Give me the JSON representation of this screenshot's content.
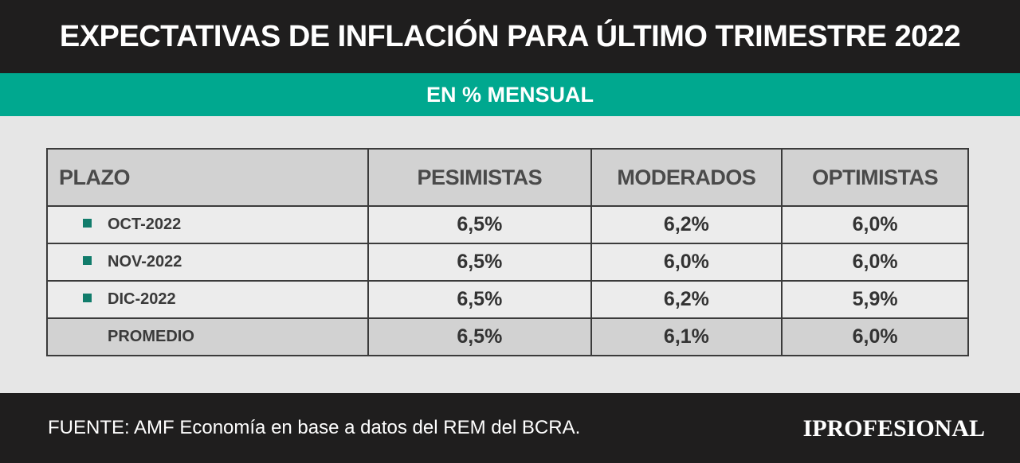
{
  "title": "EXPECTATIVAS DE INFLACIÓN PARA ÚLTIMO TRIMESTRE 2022",
  "subtitle": "EN % MENSUAL",
  "colors": {
    "header_bg": "#1f1e1e",
    "accent": "#00a88f",
    "bullet": "#117c6b"
  },
  "chart_data": {
    "type": "table",
    "columns": [
      "PLAZO",
      "PESIMISTAS",
      "MODERADOS",
      "OPTIMISTAS"
    ],
    "rows": [
      {
        "label": "OCT-2022",
        "values": [
          "6,5%",
          "6,2%",
          "6,0%"
        ]
      },
      {
        "label": "NOV-2022",
        "values": [
          "6,5%",
          "6,0%",
          "6,0%"
        ]
      },
      {
        "label": "DIC-2022",
        "values": [
          "6,5%",
          "6,2%",
          "5,9%"
        ]
      },
      {
        "label": "PROMEDIO",
        "values": [
          "6,5%",
          "6,1%",
          "6,0%"
        ]
      }
    ]
  },
  "footer": {
    "source": "FUENTE: AMF Economía en base a datos del REM del BCRA.",
    "logo": "IPROFESIONAL"
  }
}
